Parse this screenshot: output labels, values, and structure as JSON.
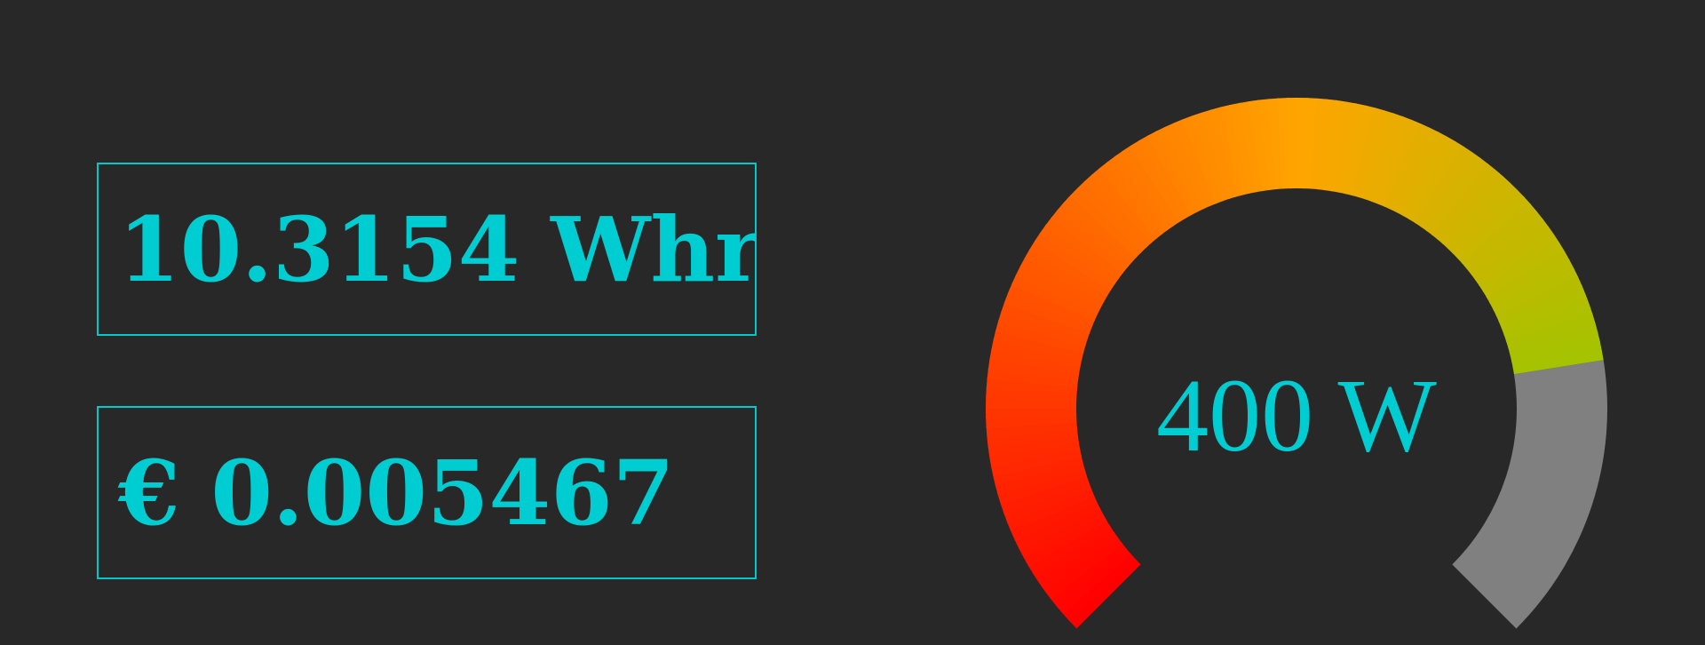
{
  "energy": {
    "text": "10.3154 Whr"
  },
  "cost": {
    "text": "€ 0.005467"
  },
  "gauge": {
    "label": "400 W",
    "fraction": 0.8,
    "colors": {
      "low": "#ff0000",
      "mid": "#ffa500",
      "high": "#66d800",
      "track": "#808080",
      "text": "#00cdd1"
    }
  },
  "colors": {
    "background": "#282828",
    "accent": "#00c8cc"
  }
}
